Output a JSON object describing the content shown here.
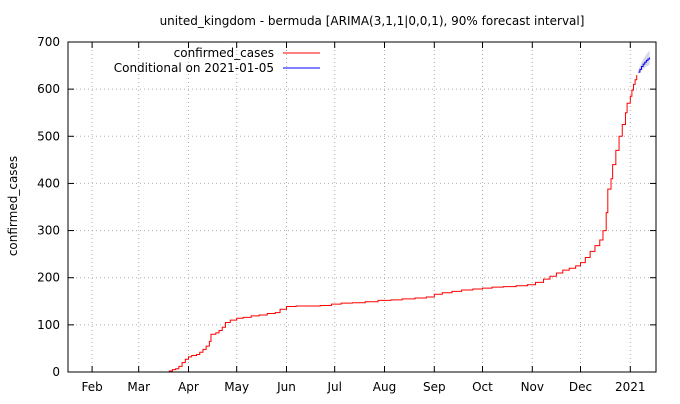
{
  "chart_data": {
    "type": "line",
    "title": "united_kingdom - bermuda [ARIMA(3,1,1|0,0,1), 90% forecast interval]",
    "xlabel": "",
    "ylabel": "confirmed_cases",
    "ylim": [
      0,
      700
    ],
    "xlim": [
      "2020-01-17",
      "2021-01-17"
    ],
    "grid": true,
    "legend": "top-left",
    "y_ticks": [
      0,
      100,
      200,
      300,
      400,
      500,
      600,
      700
    ],
    "x_ticks": [
      {
        "label": "Feb",
        "date": "2020-02-01"
      },
      {
        "label": "Mar",
        "date": "2020-03-01"
      },
      {
        "label": "Apr",
        "date": "2020-04-01"
      },
      {
        "label": "May",
        "date": "2020-05-01"
      },
      {
        "label": "Jun",
        "date": "2020-06-01"
      },
      {
        "label": "Jul",
        "date": "2020-07-01"
      },
      {
        "label": "Aug",
        "date": "2020-08-01"
      },
      {
        "label": "Sep",
        "date": "2020-09-01"
      },
      {
        "label": "Oct",
        "date": "2020-10-01"
      },
      {
        "label": "Nov",
        "date": "2020-11-01"
      },
      {
        "label": "Dec",
        "date": "2020-12-01"
      },
      {
        "label": "2021",
        "date": "2021-01-01"
      }
    ],
    "series": [
      {
        "name": "confirmed_cases",
        "color": "#ff0000",
        "points": [
          [
            "2020-03-18",
            0
          ],
          [
            "2020-03-20",
            2
          ],
          [
            "2020-03-22",
            5
          ],
          [
            "2020-03-24",
            7
          ],
          [
            "2020-03-26",
            12
          ],
          [
            "2020-03-28",
            20
          ],
          [
            "2020-03-30",
            27
          ],
          [
            "2020-04-01",
            32
          ],
          [
            "2020-04-03",
            35
          ],
          [
            "2020-04-06",
            37
          ],
          [
            "2020-04-08",
            42
          ],
          [
            "2020-04-10",
            48
          ],
          [
            "2020-04-12",
            55
          ],
          [
            "2020-04-14",
            65
          ],
          [
            "2020-04-15",
            80
          ],
          [
            "2020-04-18",
            83
          ],
          [
            "2020-04-20",
            88
          ],
          [
            "2020-04-22",
            95
          ],
          [
            "2020-04-24",
            105
          ],
          [
            "2020-04-27",
            110
          ],
          [
            "2020-05-01",
            114
          ],
          [
            "2020-05-05",
            116
          ],
          [
            "2020-05-10",
            119
          ],
          [
            "2020-05-15",
            121
          ],
          [
            "2020-05-20",
            124
          ],
          [
            "2020-05-25",
            126
          ],
          [
            "2020-05-28",
            133
          ],
          [
            "2020-06-01",
            139
          ],
          [
            "2020-06-07",
            140
          ],
          [
            "2020-06-15",
            140
          ],
          [
            "2020-06-22",
            141
          ],
          [
            "2020-06-29",
            144
          ],
          [
            "2020-07-05",
            146
          ],
          [
            "2020-07-12",
            147
          ],
          [
            "2020-07-20",
            149
          ],
          [
            "2020-07-28",
            152
          ],
          [
            "2020-08-05",
            153
          ],
          [
            "2020-08-12",
            155
          ],
          [
            "2020-08-20",
            157
          ],
          [
            "2020-08-27",
            159
          ],
          [
            "2020-09-01",
            165
          ],
          [
            "2020-09-06",
            168
          ],
          [
            "2020-09-12",
            171
          ],
          [
            "2020-09-18",
            174
          ],
          [
            "2020-09-25",
            176
          ],
          [
            "2020-10-01",
            178
          ],
          [
            "2020-10-07",
            180
          ],
          [
            "2020-10-14",
            181
          ],
          [
            "2020-10-22",
            183
          ],
          [
            "2020-10-29",
            185
          ],
          [
            "2020-11-03",
            190
          ],
          [
            "2020-11-08",
            197
          ],
          [
            "2020-11-12",
            203
          ],
          [
            "2020-11-16",
            210
          ],
          [
            "2020-11-20",
            216
          ],
          [
            "2020-11-24",
            220
          ],
          [
            "2020-11-28",
            225
          ],
          [
            "2020-12-01",
            232
          ],
          [
            "2020-12-04",
            243
          ],
          [
            "2020-12-07",
            256
          ],
          [
            "2020-12-10",
            268
          ],
          [
            "2020-12-13",
            280
          ],
          [
            "2020-12-15",
            300
          ],
          [
            "2020-12-17",
            338
          ],
          [
            "2020-12-18",
            388
          ],
          [
            "2020-12-20",
            410
          ],
          [
            "2020-12-21",
            440
          ],
          [
            "2020-12-23",
            470
          ],
          [
            "2020-12-25",
            500
          ],
          [
            "2020-12-27",
            525
          ],
          [
            "2020-12-29",
            550
          ],
          [
            "2020-12-30",
            570
          ],
          [
            "2021-01-01",
            585
          ],
          [
            "2021-01-02",
            598
          ],
          [
            "2021-01-03",
            610
          ],
          [
            "2021-01-04",
            620
          ],
          [
            "2021-01-05",
            630
          ]
        ]
      },
      {
        "name": "Conditional on 2021-01-05",
        "color": "#0000ff",
        "points": [
          [
            "2021-01-06",
            636
          ],
          [
            "2021-01-07",
            642
          ],
          [
            "2021-01-08",
            648
          ],
          [
            "2021-01-09",
            653
          ],
          [
            "2021-01-10",
            657
          ],
          [
            "2021-01-11",
            661
          ],
          [
            "2021-01-12",
            664
          ],
          [
            "2021-01-13",
            667
          ]
        ],
        "interval_lower": [
          632,
          636,
          640,
          643,
          646,
          648,
          650,
          652
        ],
        "interval_upper": [
          640,
          648,
          656,
          663,
          668,
          674,
          678,
          682
        ]
      }
    ]
  }
}
